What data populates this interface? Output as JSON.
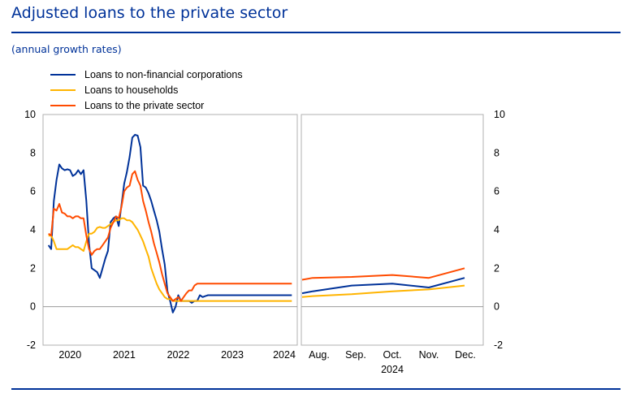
{
  "title": "Adjusted loans to the private sector",
  "subtitle": "(annual growth rates)",
  "colors": {
    "Loans to non-financial corporations": "#003299",
    "Loans to households": "#ffb400",
    "Loans to the private sector": "#ff4b00",
    "brand": "#003299",
    "grid": "#999999"
  },
  "chart_data": [
    {
      "type": "line",
      "panel": "left",
      "x_ticks": [
        "2020",
        "2021",
        "2022",
        "2023",
        "2024"
      ],
      "x_range": [
        2019.5,
        2024.2
      ],
      "ylim": [
        -2,
        10
      ],
      "y_ticks": [
        -2,
        0,
        2,
        4,
        6,
        8,
        10
      ],
      "legend": "top-left",
      "series": [
        {
          "name": "Loans to non-financial corporations",
          "x": [
            2019.6,
            2019.65,
            2019.7,
            2019.75,
            2019.8,
            2019.85,
            2019.9,
            2019.95,
            2020.0,
            2020.05,
            2020.1,
            2020.15,
            2020.2,
            2020.25,
            2020.3,
            2020.35,
            2020.4,
            2020.45,
            2020.5,
            2020.55,
            2020.6,
            2020.65,
            2020.7,
            2020.75,
            2020.8,
            2020.85,
            2020.9,
            2020.95,
            2021.0,
            2021.05,
            2021.1,
            2021.15,
            2021.2,
            2021.25,
            2021.3,
            2021.35,
            2021.4,
            2021.45,
            2021.5,
            2021.55,
            2021.6,
            2021.65,
            2021.7,
            2021.75,
            2021.8,
            2021.85,
            2021.9,
            2021.95,
            2022.0,
            2022.05,
            2022.1,
            2022.15,
            2022.2,
            2022.25,
            2022.3,
            2022.35,
            2022.4,
            2022.45,
            2022.5,
            2022.55,
            2022.6,
            2022.65,
            2022.7,
            2022.75,
            2022.8,
            2022.85,
            2022.9,
            2022.95,
            2023.0,
            2023.05,
            2023.1,
            2023.15,
            2023.2,
            2023.25,
            2023.3,
            2023.35,
            2023.4,
            2023.45,
            2023.5,
            2023.55,
            2023.6,
            2023.65,
            2023.7,
            2023.75,
            2023.8,
            2023.85,
            2023.9,
            2023.95,
            2024.0,
            2024.05,
            2024.1
          ],
          "values": [
            3.2,
            3.0,
            5.5,
            6.6,
            7.4,
            7.2,
            7.1,
            7.15,
            7.1,
            6.8,
            6.9,
            7.1,
            6.9,
            7.1,
            5.5,
            3.3,
            2.0,
            1.9,
            1.8,
            1.5,
            2.0,
            2.5,
            2.9,
            4.4,
            4.6,
            4.7,
            4.2,
            5.3,
            6.4,
            7.0,
            7.8,
            8.8,
            8.95,
            8.9,
            8.3,
            6.3,
            6.2,
            5.9,
            5.5,
            5.0,
            4.5,
            3.9,
            3.0,
            2.2,
            0.8,
            0.3,
            -0.3,
            0.0,
            0.6,
            0.3,
            0.3,
            0.3,
            0.3,
            0.2,
            0.3,
            0.3,
            0.6,
            0.5,
            0.55,
            0.6,
            0.6,
            0.6,
            0.6,
            0.6,
            0.6,
            0.6,
            0.6,
            0.6,
            0.6,
            0.6,
            0.6,
            0.6,
            0.6,
            0.6,
            0.6,
            0.6,
            0.6,
            0.6,
            0.6,
            0.6,
            0.6,
            0.6,
            0.6,
            0.6,
            0.6,
            0.6,
            0.6,
            0.6,
            0.6,
            0.6,
            0.6
          ]
        },
        {
          "name": "Loans to households",
          "x": [
            2019.6,
            2019.65,
            2019.7,
            2019.75,
            2019.8,
            2019.85,
            2019.9,
            2019.95,
            2020.0,
            2020.05,
            2020.1,
            2020.15,
            2020.2,
            2020.25,
            2020.3,
            2020.35,
            2020.4,
            2020.45,
            2020.5,
            2020.55,
            2020.6,
            2020.65,
            2020.7,
            2020.75,
            2020.8,
            2020.85,
            2020.9,
            2020.95,
            2021.0,
            2021.05,
            2021.1,
            2021.15,
            2021.2,
            2021.25,
            2021.3,
            2021.35,
            2021.4,
            2021.45,
            2021.5,
            2021.55,
            2021.6,
            2021.65,
            2021.7,
            2021.75,
            2021.8,
            2021.85,
            2021.9,
            2021.95,
            2022.0,
            2022.05,
            2022.1,
            2022.15,
            2022.2,
            2022.25,
            2022.3,
            2022.35,
            2022.4,
            2022.45,
            2022.5,
            2022.55,
            2022.6,
            2022.65,
            2022.7,
            2022.75,
            2022.8,
            2022.85,
            2022.9,
            2022.95,
            2023.0,
            2023.05,
            2023.1,
            2023.15,
            2023.2,
            2023.25,
            2023.3,
            2023.35,
            2023.4,
            2023.45,
            2023.5,
            2023.55,
            2023.6,
            2023.65,
            2023.7,
            2023.75,
            2023.8,
            2023.85,
            2023.9,
            2023.95,
            2024.0,
            2024.05,
            2024.1
          ],
          "values": [
            3.7,
            3.7,
            3.4,
            3.0,
            3.0,
            3.0,
            3.0,
            3.0,
            3.1,
            3.2,
            3.1,
            3.1,
            3.0,
            2.9,
            3.4,
            3.8,
            3.8,
            3.9,
            4.1,
            4.15,
            4.1,
            4.1,
            4.2,
            4.3,
            4.4,
            4.5,
            4.5,
            4.6,
            4.6,
            4.5,
            4.5,
            4.4,
            4.2,
            4.0,
            3.7,
            3.4,
            3.0,
            2.6,
            2.0,
            1.6,
            1.2,
            0.9,
            0.7,
            0.5,
            0.4,
            0.4,
            0.3,
            0.3,
            0.3,
            0.3,
            0.3,
            0.3,
            0.3,
            0.3,
            0.3,
            0.3,
            0.3,
            0.3,
            0.3,
            0.3,
            0.3,
            0.3,
            0.3,
            0.3,
            0.3,
            0.3,
            0.3,
            0.3,
            0.3,
            0.3,
            0.3,
            0.3,
            0.3,
            0.3,
            0.3,
            0.3,
            0.3,
            0.3,
            0.3,
            0.3,
            0.3,
            0.3,
            0.3,
            0.3,
            0.3,
            0.3,
            0.3,
            0.3,
            0.3,
            0.3,
            0.3
          ]
        },
        {
          "name": "Loans to the private sector",
          "x": [
            2019.6,
            2019.65,
            2019.7,
            2019.75,
            2019.8,
            2019.85,
            2019.9,
            2019.95,
            2020.0,
            2020.05,
            2020.1,
            2020.15,
            2020.2,
            2020.25,
            2020.3,
            2020.35,
            2020.4,
            2020.45,
            2020.5,
            2020.55,
            2020.6,
            2020.65,
            2020.7,
            2020.75,
            2020.8,
            2020.85,
            2020.9,
            2020.95,
            2021.0,
            2021.05,
            2021.1,
            2021.15,
            2021.2,
            2021.25,
            2021.3,
            2021.35,
            2021.4,
            2021.45,
            2021.5,
            2021.55,
            2021.6,
            2021.65,
            2021.7,
            2021.75,
            2021.8,
            2021.85,
            2021.9,
            2021.95,
            2022.0,
            2022.05,
            2022.1,
            2022.15,
            2022.2,
            2022.25,
            2022.3,
            2022.35,
            2022.4,
            2022.45,
            2022.5,
            2022.55,
            2022.6,
            2022.65,
            2022.7,
            2022.75,
            2022.8,
            2022.85,
            2022.9,
            2022.95,
            2023.0,
            2023.05,
            2023.1,
            2023.15,
            2023.2,
            2023.25,
            2023.3,
            2023.35,
            2023.4,
            2023.45,
            2023.5,
            2023.55,
            2023.6,
            2023.65,
            2023.7,
            2023.75,
            2023.8,
            2023.85,
            2023.9,
            2023.95,
            2024.0,
            2024.05,
            2024.1
          ],
          "values": [
            3.8,
            3.7,
            5.1,
            5.0,
            5.35,
            4.9,
            4.85,
            4.7,
            4.7,
            4.6,
            4.7,
            4.7,
            4.6,
            4.6,
            3.7,
            3.0,
            2.7,
            2.9,
            3.0,
            3.0,
            3.2,
            3.4,
            3.6,
            4.1,
            4.4,
            4.7,
            4.6,
            5.2,
            6.0,
            6.2,
            6.3,
            6.9,
            7.05,
            6.6,
            6.3,
            5.5,
            5.0,
            4.4,
            3.9,
            3.3,
            2.8,
            2.3,
            1.7,
            1.2,
            0.7,
            0.5,
            0.3,
            0.4,
            0.5,
            0.3,
            0.5,
            0.7,
            0.85,
            0.85,
            1.1,
            1.2,
            1.2,
            1.2,
            1.2,
            1.2,
            1.2,
            1.2,
            1.2,
            1.2,
            1.2,
            1.2,
            1.2,
            1.2,
            1.2,
            1.2,
            1.2,
            1.2,
            1.2,
            1.2,
            1.2,
            1.2,
            1.2,
            1.2,
            1.2,
            1.2,
            1.2,
            1.2,
            1.2,
            1.2,
            1.2,
            1.2,
            1.2,
            1.2,
            1.2,
            1.2,
            1.2
          ]
        }
      ]
    },
    {
      "type": "line",
      "panel": "right",
      "categories": [
        "Aug.",
        "Sep.",
        "Oct.",
        "Nov.",
        "Dec."
      ],
      "x_group_label": "2024",
      "ylim": [
        -2,
        10
      ],
      "y_ticks": [
        -2,
        0,
        2,
        4,
        6,
        8,
        10
      ],
      "series": [
        {
          "name": "Loans to non-financial corporations",
          "x": [
            0,
            0.3,
            1,
            2,
            3,
            4
          ],
          "values": [
            0.7,
            0.8,
            1.1,
            1.2,
            1.0,
            1.5
          ]
        },
        {
          "name": "Loans to households",
          "x": [
            0,
            0.3,
            1,
            2,
            3,
            4
          ],
          "values": [
            0.5,
            0.55,
            0.65,
            0.8,
            0.9,
            1.1
          ]
        },
        {
          "name": "Loans to the private sector",
          "x": [
            0,
            0.3,
            1,
            2,
            3,
            4
          ],
          "values": [
            1.4,
            1.5,
            1.55,
            1.65,
            1.5,
            2.0
          ]
        }
      ]
    }
  ]
}
